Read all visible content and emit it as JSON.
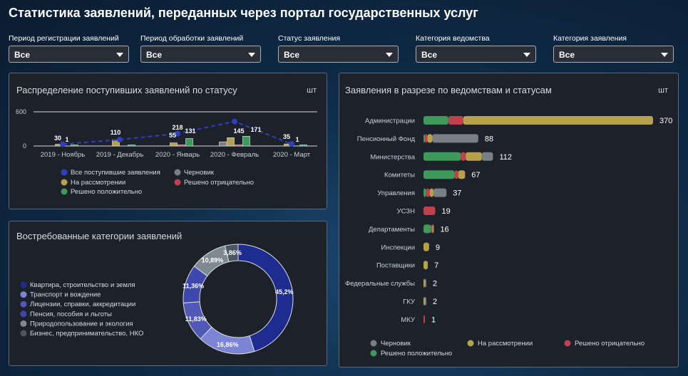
{
  "page": {
    "title": "Статистика заявлений, переданных через портал государственных услуг"
  },
  "filters": [
    {
      "label": "Период регистрации заявлений",
      "value": "Все"
    },
    {
      "label": "Период обработки заявлений",
      "value": "Все"
    },
    {
      "label": "Статус заявления",
      "value": "Все"
    },
    {
      "label": "Категория ведомства",
      "value": "Все"
    },
    {
      "label": "Категория заявления",
      "value": "Все"
    }
  ],
  "colors": {
    "draft": "#7a7f85",
    "review": "#b5a24a",
    "rejected": "#c0414e",
    "approved": "#3e9a5a",
    "all": "#2f3fbf"
  },
  "status_panel": {
    "title": "Распределение поступивших заявлений по статусу",
    "unit": "шт"
  },
  "categories_panel": {
    "title": "Востребованные категории заявлений"
  },
  "departments_panel": {
    "title": "Заявления в разрезе по ведомствам и статусам",
    "unit": "шт"
  },
  "chart_data": [
    {
      "type": "bar",
      "title": "Распределение поступивших заявлений по статусу",
      "unit": "шт",
      "ylim": [
        0,
        600
      ],
      "yticks": [
        "0",
        "600"
      ],
      "categories": [
        "2019 - Ноябрь",
        "2019 - Декабрь",
        "2020 - Январь",
        "2020 - Февраль",
        "2020 - Март"
      ],
      "series": [
        {
          "name": "Черновик",
          "color": "#7a7f85",
          "values": [
            0,
            0,
            0,
            73,
            0
          ]
        },
        {
          "name": "На рассмотрении",
          "color": "#b5a24a",
          "values": [
            30,
            110,
            55,
            145,
            35
          ]
        },
        {
          "name": "Решено отрицательно",
          "color": "#c0414e",
          "values": [
            0,
            0,
            14,
            10,
            0
          ]
        },
        {
          "name": "Решено положительно",
          "color": "#3e9a5a",
          "values": [
            1,
            2,
            131,
            171,
            1
          ]
        }
      ],
      "line_series": {
        "name": "Все поступившие заявления",
        "color": "#2f3fbf",
        "values": [
          31,
          112,
          218,
          430,
          36
        ]
      },
      "data_labels": [
        [
          "30",
          "1"
        ],
        [
          "110"
        ],
        [
          "55",
          "218",
          "131"
        ],
        [
          "145",
          "171"
        ],
        [
          "35",
          "1"
        ]
      ],
      "legend": [
        {
          "name": "Все поступившие заявления",
          "color": "#2f3fbf"
        },
        {
          "name": "Черновик",
          "color": "#7a7f85"
        },
        {
          "name": "На рассмотрении",
          "color": "#b5a24a"
        },
        {
          "name": "Решено отрицательно",
          "color": "#c0414e"
        },
        {
          "name": "Решено положительно",
          "color": "#3e9a5a"
        }
      ]
    },
    {
      "type": "pie",
      "title": "Востребованные категории заявлений",
      "slices": [
        {
          "name": "Квартира, строительство и земля",
          "value": 45.2,
          "label": "45,2%",
          "color": "#1f2c8f"
        },
        {
          "name": "Транспорт и вождение",
          "value": 16.86,
          "label": "16,86%",
          "color": "#7c84d6"
        },
        {
          "name": "Лицензии, справки, аккредитации",
          "value": 11.83,
          "label": "11,83%",
          "color": "#5058b8"
        },
        {
          "name": "Пенсия, пособия и льготы",
          "value": 11.36,
          "label": "11,36%",
          "color": "#3d48ad"
        },
        {
          "name": "Природопользование и экология",
          "value": 10.89,
          "label": "10,89%",
          "color": "#7f8a90"
        },
        {
          "name": "Бизнес, предпринимательство, НКО",
          "value": 3.86,
          "label": "3,86%",
          "color": "#4d5561"
        }
      ]
    },
    {
      "type": "bar",
      "orientation": "horizontal",
      "stacked": true,
      "title": "Заявления в разрезе по ведомствам и статусам",
      "unit": "шт",
      "categories": [
        "Администрации",
        "Пенсионный Фонд",
        "Министерства",
        "Комитеты",
        "Управления",
        "УСЗН",
        "Департаменты",
        "Инспекции",
        "Поставщики",
        "Федеральные службы",
        "ГКУ",
        "МКУ"
      ],
      "totals": [
        370,
        88,
        112,
        67,
        37,
        19,
        16,
        9,
        7,
        2,
        2,
        1
      ],
      "series": [
        {
          "name": "Решено положительно",
          "color": "#3e9a5a",
          "values": [
            40,
            2,
            60,
            50,
            4,
            0,
            12,
            0,
            0,
            0,
            0,
            0
          ]
        },
        {
          "name": "Решено отрицательно",
          "color": "#c0414e",
          "values": [
            24,
            4,
            8,
            6,
            6,
            19,
            2,
            0,
            0,
            0,
            0,
            1
          ]
        },
        {
          "name": "На рассмотрении",
          "color": "#b5a24a",
          "values": [
            306,
            8,
            26,
            11,
            6,
            0,
            2,
            9,
            7,
            1,
            1,
            0
          ]
        },
        {
          "name": "Черновик",
          "color": "#7a7f85",
          "values": [
            0,
            74,
            18,
            0,
            21,
            0,
            0,
            0,
            0,
            1,
            1,
            0
          ]
        }
      ],
      "legend": [
        {
          "name": "Черновик",
          "color": "#7a7f85"
        },
        {
          "name": "На рассмотрении",
          "color": "#b5a24a"
        },
        {
          "name": "Решено отрицательно",
          "color": "#c0414e"
        },
        {
          "name": "Решено положительно",
          "color": "#3e9a5a"
        }
      ]
    }
  ]
}
